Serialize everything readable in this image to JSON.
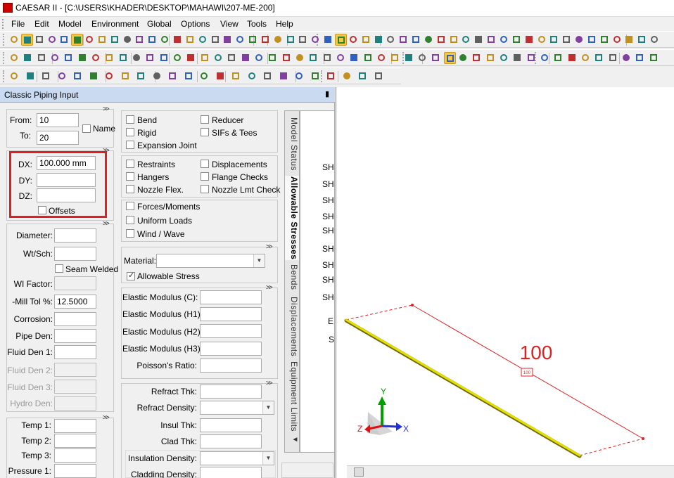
{
  "window": {
    "title": "CAESAR II - [C:\\USERS\\KHADER\\DESKTOP\\MAHAWI\\207-ME-200]"
  },
  "menu": [
    "File",
    "Edit",
    "Model",
    "Environment",
    "Global",
    "Options",
    "View",
    "Tools",
    "Help"
  ],
  "panel": {
    "title": "Classic Piping Input"
  },
  "node": {
    "from_label": "From:",
    "from": "10",
    "to_label": "To:",
    "to": "20",
    "name_label": "Name"
  },
  "delta": {
    "dx_label": "DX:",
    "dx": "100.000 mm",
    "dy_label": "DY:",
    "dy": "",
    "dz_label": "DZ:",
    "dz": "",
    "offsets_label": "Offsets"
  },
  "pipe": {
    "diameter_label": "Diameter:",
    "wtsch_label": "Wt/Sch:",
    "seam_label": "Seam Welded",
    "wi_label": "WI Factor:",
    "mill_label": "-Mill Tol %:",
    "mill": "12.5000",
    "corrosion_label": "Corrosion:",
    "pipe_den_label": "Pipe Den:",
    "fluid1_label": "Fluid Den 1:",
    "fluid2_label": "Fluid Den 2:",
    "fluid3_label": "Fluid Den 3:",
    "hydro_label": "Hydro Den:"
  },
  "temps": {
    "t1": "Temp 1:",
    "t2": "Temp 2:",
    "t3": "Temp 3:",
    "p1": "Pressure 1:"
  },
  "elements": {
    "bend": "Bend",
    "reducer": "Reducer",
    "rigid": "Rigid",
    "sifs": "SIFs & Tees",
    "expansion": "Expansion Joint",
    "restraints": "Restraints",
    "displacements": "Displacements",
    "hangers": "Hangers",
    "flange": "Flange Checks",
    "nozzle_flex": "Nozzle Flex.",
    "nozzle_lmt": "Nozzle Lmt Check",
    "forces": "Forces/Moments",
    "uniform": "Uniform Loads",
    "wind": "Wind / Wave"
  },
  "material": {
    "label": "Material:",
    "allowable": "Allowable Stress"
  },
  "elastic": {
    "c": "Elastic Modulus (C):",
    "h1": "Elastic Modulus (H1):",
    "h2": "Elastic Modulus (H2):",
    "h3": "Elastic Modulus (H3):",
    "poisson": "Poisson's Ratio:"
  },
  "insul": {
    "refract_thk": "Refract Thk:",
    "refract_den": "Refract Density:",
    "insul_thk": "Insul Thk:",
    "clad_thk": "Clad Thk:",
    "insul_den": "Insulation Density:",
    "clad_den": "Cladding Density:"
  },
  "tabs": [
    "Model Status",
    "Allowable Stresses",
    "Bends",
    "Displacements",
    "Equipment Limits"
  ],
  "tab_arrow": "◄",
  "right_labels": [
    "SH",
    "SH",
    "SH",
    "SH",
    "SH",
    "SH",
    "SH",
    "SH",
    "SH",
    "E",
    "S"
  ],
  "viewport": {
    "dimension": "100",
    "tag": "100",
    "axis_y": "Y",
    "axis_x": "X",
    "axis_z": "Z"
  },
  "colors": {
    "pipe": "#d8d800",
    "dim": "#e02020",
    "highlight": "#e02020",
    "panel_header": "#c9daf1"
  },
  "expand_glyph": ">>"
}
